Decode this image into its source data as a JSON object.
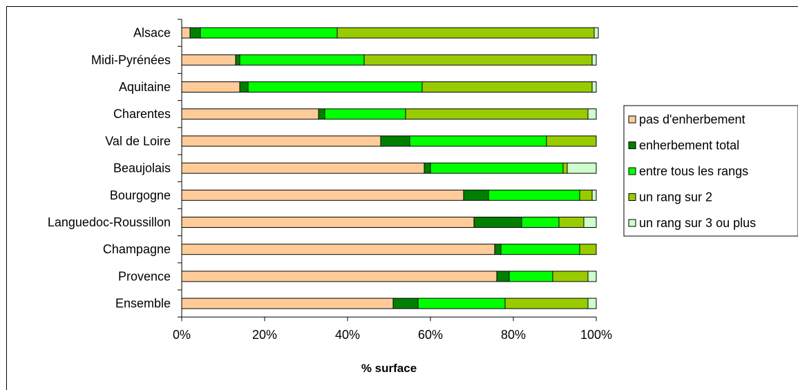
{
  "chart_data": {
    "type": "bar",
    "orientation": "horizontal",
    "stacked": "percent",
    "categories": [
      "Alsace",
      "Midi-Pyrénées",
      "Aquitaine",
      "Charentes",
      "Val de Loire",
      "Beaujolais",
      "Bourgogne",
      "Languedoc-Roussillon",
      "Champagne",
      "Provence",
      "Ensemble"
    ],
    "series": [
      {
        "name": "pas d'enherbement",
        "color": "#FFCC99",
        "values": [
          2,
          13,
          14,
          33,
          48,
          58.5,
          68,
          70.5,
          75.5,
          76,
          51
        ]
      },
      {
        "name": "enherbement total",
        "color": "#008000",
        "values": [
          2.5,
          1,
          2,
          1.5,
          7,
          1.5,
          6,
          11.5,
          1.5,
          3,
          6
        ]
      },
      {
        "name": "entre tous les rangs",
        "color": "#00FF00",
        "values": [
          33,
          30,
          42,
          19.5,
          33,
          32,
          22,
          9,
          19,
          10.5,
          21
        ]
      },
      {
        "name": "un rang sur 2",
        "color": "#99CC00",
        "values": [
          62,
          55,
          41,
          44,
          12,
          1,
          3,
          6,
          4,
          8.5,
          20
        ]
      },
      {
        "name": "un rang sur 3 ou plus",
        "color": "#CCFFCC",
        "values": [
          1,
          1,
          1,
          2,
          0,
          7,
          1,
          3,
          0,
          2,
          2
        ]
      }
    ],
    "xlabel": "% surface",
    "xlim": [
      0,
      100
    ],
    "x_ticks": [
      "0%",
      "20%",
      "40%",
      "60%",
      "80%",
      "100%"
    ],
    "legend_position": "right",
    "grid": false
  }
}
